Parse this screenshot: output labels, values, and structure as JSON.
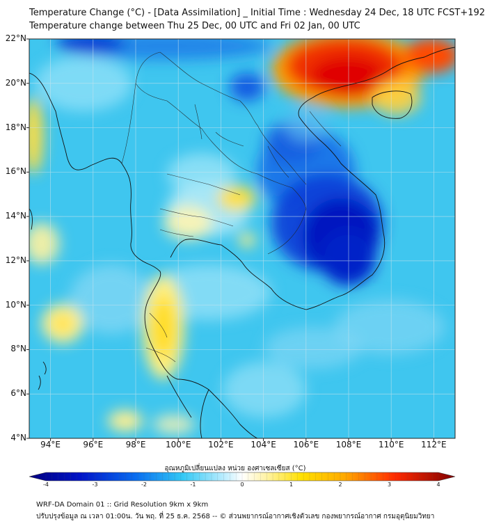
{
  "header": {
    "title_line1": "Temperature Change (°C) - [Data Assimilation] _ Initial Time : Wednesday 24 Dec, 18 UTC FCST+192",
    "title_line2": "Temperature change between Thu 25 Dec, 00 UTC and Fri 02 Jan, 00 UTC"
  },
  "map": {
    "lat_labels": [
      "22°N",
      "20°N",
      "18°N",
      "16°N",
      "14°N",
      "12°N",
      "10°N",
      "8°N",
      "6°N",
      "4°N"
    ],
    "lon_labels": [
      "94°E",
      "96°E",
      "98°E",
      "100°E",
      "102°E",
      "104°E",
      "106°E",
      "108°E",
      "110°E",
      "112°E"
    ],
    "lat_range": [
      4,
      22
    ],
    "lon_range": [
      93,
      113
    ],
    "anomalies": [
      {
        "name": "warm-gulf-of-tonkin",
        "lon": 108.0,
        "lat": 20.6,
        "value": 3.4
      },
      {
        "name": "warm-south-china",
        "lon": 106.5,
        "lat": 21.5,
        "value": 2.8
      },
      {
        "name": "warm-hainan-east",
        "lon": 110.8,
        "lat": 21.2,
        "value": 2.6
      },
      {
        "name": "cold-cambodia",
        "lon": 106.8,
        "lat": 13.2,
        "value": -3.8
      },
      {
        "name": "cold-southern-vietnam",
        "lon": 107.5,
        "lat": 11.8,
        "value": -3.4
      },
      {
        "name": "cold-laos",
        "lon": 105.2,
        "lat": 16.5,
        "value": -2.6
      },
      {
        "name": "cold-upper-laos",
        "lon": 103.7,
        "lat": 20.0,
        "value": -2.4
      },
      {
        "name": "cold-north-edge",
        "lon": 98.0,
        "lat": 22.0,
        "value": -2.6
      },
      {
        "name": "warm-peninsula",
        "lon": 99.2,
        "lat": 9.0,
        "value": 1.5
      },
      {
        "name": "warm-central-thailand",
        "lon": 102.3,
        "lat": 14.4,
        "value": 1.4
      },
      {
        "name": "warm-andaman",
        "lon": 94.5,
        "lat": 9.2,
        "value": 1.2
      },
      {
        "name": "warm-west-myanmar",
        "lon": 93.2,
        "lat": 17.7,
        "value": 1.6
      },
      {
        "name": "warm-bay-bengal",
        "lon": 93.5,
        "lat": 12.5,
        "value": 1.0
      }
    ]
  },
  "colorbar": {
    "title": "อุณหภูมิเปลี่ยนแปลง หน่วย องศาเซลเซียส (°C)",
    "ticks": [
      "-4",
      "-3",
      "-2",
      "-1",
      "0",
      "1",
      "2",
      "3",
      "4"
    ],
    "min": -4,
    "max": 4
  },
  "footer": {
    "line1": "WRF-DA Domain 01 :: Grid Resolution 9km x 9km",
    "line2": "ปรับปรุงข้อมูล ณ เวลา 01:00น. วัน พฤ. ที่ 25 ธ.ค. 2568 -- © ส่วนพยากรณ์อากาศเชิงตัวเลข กองพยากรณ์อากาศ กรมอุตุนิยมวิทยา"
  },
  "colors": {
    "background_cold": "#3ec8f0",
    "cold_extreme": "#0018c8",
    "warm_extreme": "#e10000",
    "neutral": "#eef9ff"
  }
}
